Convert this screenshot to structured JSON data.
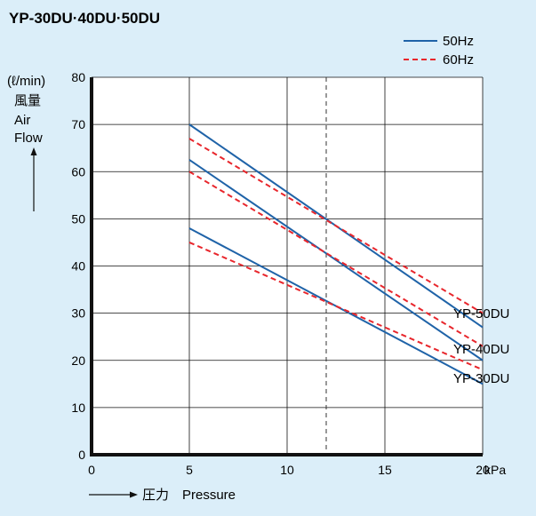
{
  "chart_data": {
    "type": "line",
    "title": "YP-30DU·40DU·50DU",
    "ylabel_unit": "(ℓ/min)",
    "ylabel_lines": [
      "風量",
      "Air",
      "Flow"
    ],
    "xlabel_arrow": "→",
    "xlabel": "圧力　Pressure",
    "x_unit": "kPa",
    "xlim": [
      0,
      20
    ],
    "ylim": [
      0,
      80
    ],
    "x_ticks": [
      0,
      5,
      10,
      15,
      20
    ],
    "y_ticks": [
      0,
      10,
      20,
      30,
      40,
      50,
      60,
      70,
      80
    ],
    "grid": true,
    "reference_line_x": 12,
    "legend_position": "top-right",
    "legend": [
      {
        "label": "50Hz",
        "style": "solid",
        "color": "#1f63a8"
      },
      {
        "label": "60Hz",
        "style": "dashed",
        "color": "#e8262c"
      }
    ],
    "series": [
      {
        "name": "YP-50DU",
        "frequency": "50Hz",
        "x": [
          5,
          20
        ],
        "y": [
          70,
          27
        ]
      },
      {
        "name": "YP-50DU",
        "frequency": "60Hz",
        "x": [
          5,
          20
        ],
        "y": [
          67,
          30
        ]
      },
      {
        "name": "YP-40DU",
        "frequency": "50Hz",
        "x": [
          5,
          20
        ],
        "y": [
          62.5,
          20
        ]
      },
      {
        "name": "YP-40DU",
        "frequency": "60Hz",
        "x": [
          5,
          20
        ],
        "y": [
          60,
          23
        ]
      },
      {
        "name": "YP-30DU",
        "frequency": "50Hz",
        "x": [
          5,
          20
        ],
        "y": [
          48,
          15
        ]
      },
      {
        "name": "YP-30DU",
        "frequency": "60Hz",
        "x": [
          5,
          20
        ],
        "y": [
          45,
          18
        ]
      }
    ],
    "model_labels": [
      "YP-50DU",
      "YP-40DU",
      "YP-30DU"
    ],
    "colors": {
      "solid": "#1f63a8",
      "dashed": "#e8262c",
      "background": "#dbeef9",
      "plot_bg": "#ffffff"
    }
  }
}
